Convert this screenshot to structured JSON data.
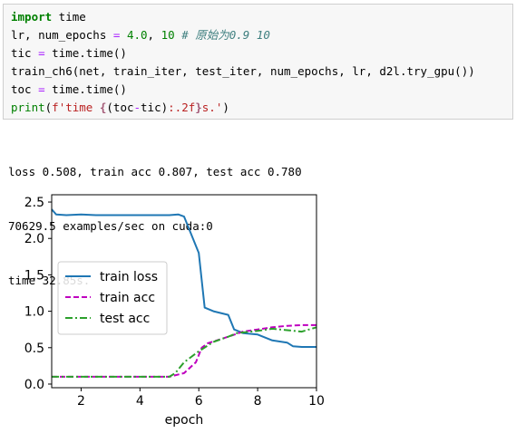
{
  "code_cell": {
    "lines": [
      [
        {
          "t": "import",
          "c": "kw"
        },
        {
          "t": " time",
          "c": ""
        }
      ],
      [
        {
          "t": "lr, num_epochs ",
          "c": ""
        },
        {
          "t": "=",
          "c": "op"
        },
        {
          "t": " ",
          "c": ""
        },
        {
          "t": "4.0",
          "c": "num"
        },
        {
          "t": ", ",
          "c": ""
        },
        {
          "t": "10",
          "c": "num"
        },
        {
          "t": " ",
          "c": ""
        },
        {
          "t": "# 原始为0.9 10",
          "c": "cm"
        }
      ],
      [
        {
          "t": "tic ",
          "c": ""
        },
        {
          "t": "=",
          "c": "op"
        },
        {
          "t": " time.time()",
          "c": ""
        }
      ],
      [
        {
          "t": "train_ch6(net, train_iter, test_iter, num_epochs, lr, d2l.try_gpu())",
          "c": ""
        }
      ],
      [
        {
          "t": "toc ",
          "c": ""
        },
        {
          "t": "=",
          "c": "op"
        },
        {
          "t": " time.time()",
          "c": ""
        }
      ],
      [
        {
          "t": "print",
          "c": "bi"
        },
        {
          "t": "(",
          "c": ""
        },
        {
          "t": "f'time ",
          "c": "str"
        },
        {
          "t": "{",
          "c": "fmt"
        },
        {
          "t": "(toc",
          "c": ""
        },
        {
          "t": "-",
          "c": "op"
        },
        {
          "t": "tic)",
          "c": ""
        },
        {
          "t": ":.2f",
          "c": "str"
        },
        {
          "t": "}",
          "c": "fmt"
        },
        {
          "t": "s.'",
          "c": "str"
        },
        {
          "t": ")",
          "c": ""
        }
      ]
    ]
  },
  "output": {
    "lines": [
      "loss 0.508, train acc 0.807, test acc 0.780",
      "70629.5 examples/sec on cuda:0",
      "time 32.85s."
    ]
  },
  "chart_data": {
    "type": "line",
    "xlabel": "epoch",
    "ylabel": "",
    "xlim": [
      1,
      10
    ],
    "ylim": [
      -0.05,
      2.6
    ],
    "xticks": [
      "2",
      "4",
      "6",
      "8",
      "10"
    ],
    "yticks": [
      "0.0",
      "0.5",
      "1.0",
      "1.5",
      "2.0",
      "2.5"
    ],
    "legend_position": "center-left",
    "grid": false,
    "series": [
      {
        "name": "train loss",
        "color": "#1f77b4",
        "dash": "solid",
        "x": [
          1.0,
          1.15,
          1.5,
          2,
          2.5,
          3,
          3.5,
          4,
          4.5,
          5,
          5.3,
          5.5,
          5.7,
          6.0,
          6.2,
          6.5,
          7.0,
          7.2,
          7.5,
          8.0,
          8.5,
          9.0,
          9.2,
          9.5,
          10
        ],
        "y": [
          2.4,
          2.33,
          2.32,
          2.33,
          2.32,
          2.32,
          2.32,
          2.32,
          2.32,
          2.32,
          2.33,
          2.3,
          2.1,
          1.8,
          1.05,
          1.0,
          0.95,
          0.75,
          0.7,
          0.68,
          0.6,
          0.57,
          0.52,
          0.51,
          0.51
        ]
      },
      {
        "name": "train acc",
        "color": "#bf00bf",
        "dash": "dashed",
        "x": [
          1,
          2,
          3,
          4,
          5,
          5.5,
          5.9,
          6.1,
          6.3,
          7.0,
          7.5,
          8,
          8.5,
          9,
          9.5,
          10
        ],
        "y": [
          0.1,
          0.1,
          0.1,
          0.1,
          0.1,
          0.15,
          0.3,
          0.5,
          0.56,
          0.65,
          0.72,
          0.75,
          0.78,
          0.8,
          0.81,
          0.81
        ]
      },
      {
        "name": "test acc",
        "color": "#2ca02c",
        "dash": "dashdot",
        "x": [
          1,
          2,
          3,
          4,
          5,
          5.2,
          5.5,
          6.0,
          6.5,
          7.0,
          7.3,
          8.0,
          8.5,
          9.0,
          9.5,
          10
        ],
        "y": [
          0.1,
          0.1,
          0.1,
          0.1,
          0.1,
          0.15,
          0.3,
          0.45,
          0.58,
          0.65,
          0.7,
          0.73,
          0.76,
          0.74,
          0.72,
          0.78
        ]
      }
    ]
  }
}
